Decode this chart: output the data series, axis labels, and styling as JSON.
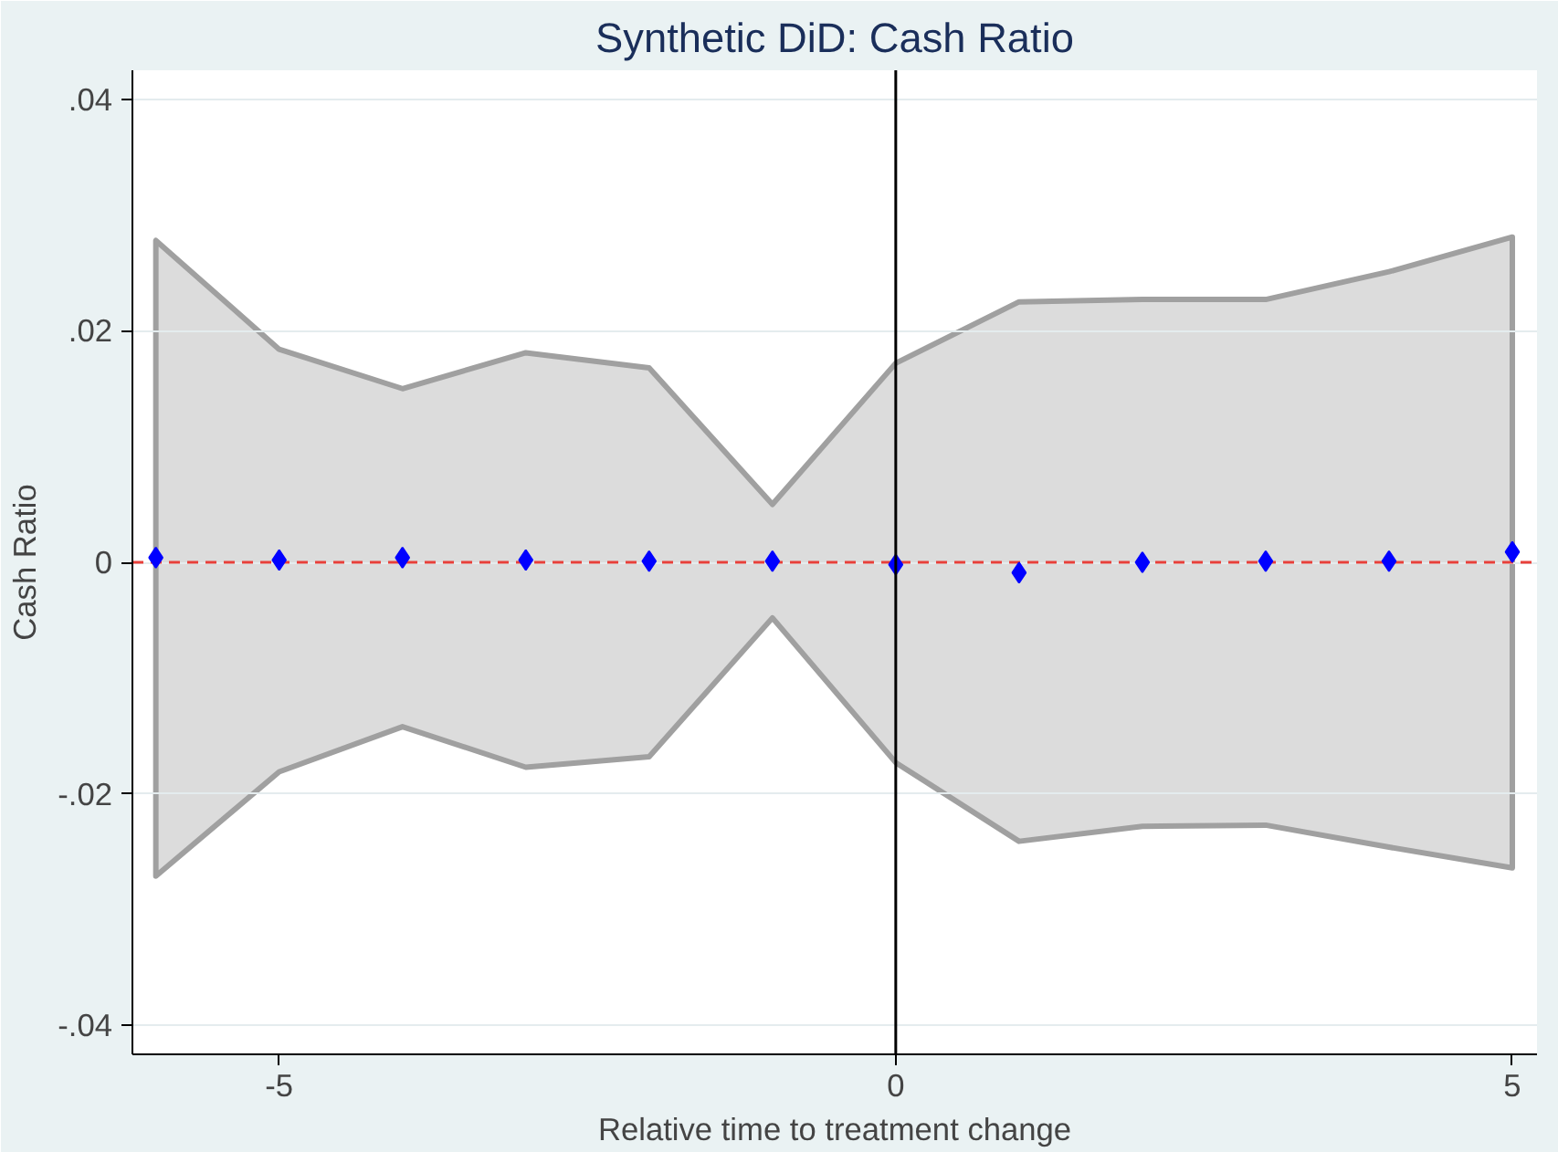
{
  "chart_data": {
    "type": "scatter",
    "title": "Synthetic DiD: Cash Ratio",
    "xlabel": "Relative time to treatment change",
    "ylabel": "Cash Ratio",
    "x": [
      -6,
      -5,
      -4,
      -3,
      -2,
      -1,
      0,
      1,
      2,
      3,
      4,
      5
    ],
    "series": [
      {
        "color": "#0000ff",
        "values": [
          0.0004,
          0.0002,
          0.0004,
          0.0002,
          0.0001,
          0.0001,
          -0.0002,
          -0.0009,
          0.0,
          0.0001,
          0.0001,
          0.0009
        ],
        "lower": [
          -0.0271,
          -0.0181,
          -0.0142,
          -0.0177,
          -0.0168,
          -0.0048,
          -0.0173,
          -0.0241,
          -0.0228,
          -0.0227,
          -0.0246,
          -0.0264
        ],
        "upper": [
          0.0278,
          0.0184,
          0.015,
          0.0181,
          0.0168,
          0.005,
          0.0172,
          0.0225,
          0.0227,
          0.0227,
          0.0251,
          0.0281
        ]
      }
    ],
    "marker": "diamond",
    "grid": "y",
    "xlim": [
      -6.19,
      5.2
    ],
    "ylim": [
      -0.0425,
      0.0425
    ],
    "xticks": [
      -5,
      0,
      5
    ],
    "yticks": [
      {
        "value": -0.04,
        "label": "-.04"
      },
      {
        "value": -0.02,
        "label": "-.02"
      },
      0,
      {
        "value": 0.02,
        "label": ".02"
      },
      {
        "value": 0.04,
        "label": ".04"
      }
    ],
    "ref_lines": [
      {
        "axis": "y",
        "value": 0,
        "color": "#e8403a",
        "line_style": "dashed"
      },
      {
        "axis": "x",
        "value": 0,
        "color": "#000000",
        "line_style": "solid"
      }
    ]
  }
}
